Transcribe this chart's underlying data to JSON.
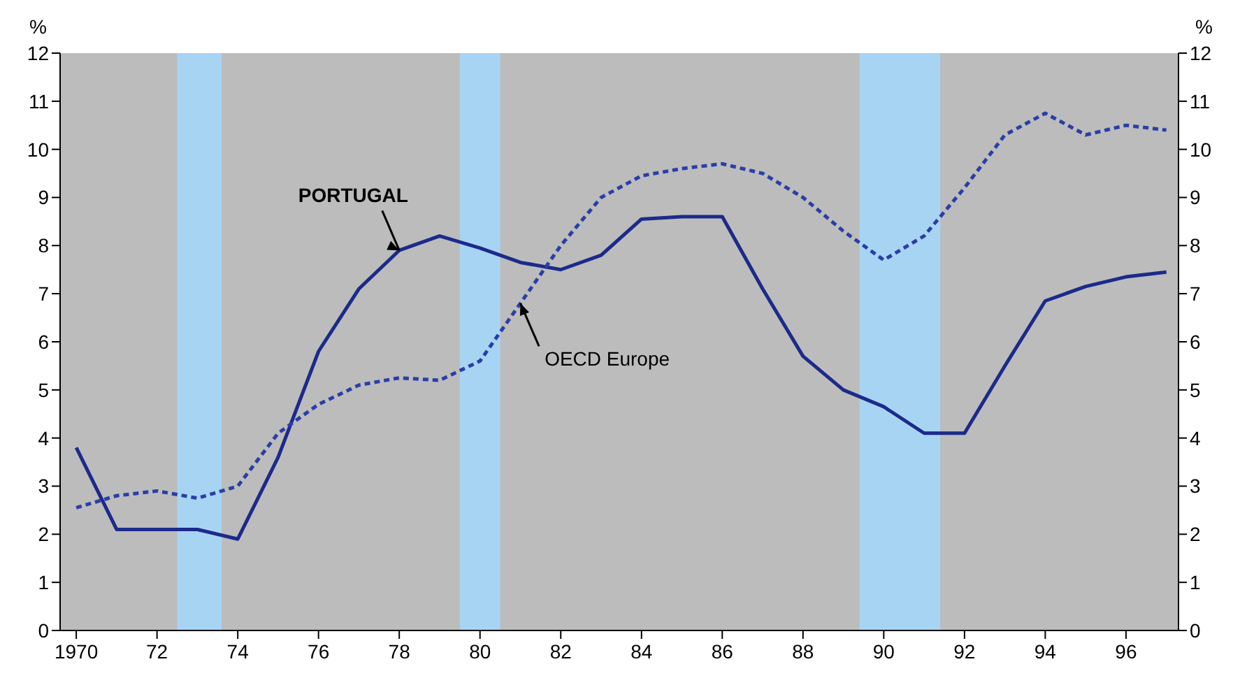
{
  "chart_data": {
    "type": "line",
    "ylabel": "%",
    "y2label": "%",
    "x": [
      1970,
      1971,
      1972,
      1973,
      1974,
      1975,
      1976,
      1977,
      1978,
      1979,
      1980,
      1981,
      1982,
      1983,
      1984,
      1985,
      1986,
      1987,
      1988,
      1989,
      1990,
      1991,
      1992,
      1993,
      1994,
      1995,
      1996,
      1997
    ],
    "series": [
      {
        "name": "PORTUGAL",
        "color": "#1c2a8a",
        "line_style": "solid",
        "values": [
          3.8,
          2.1,
          2.1,
          2.1,
          1.9,
          3.6,
          5.8,
          7.1,
          7.9,
          8.2,
          7.95,
          7.65,
          7.5,
          7.8,
          8.55,
          8.6,
          8.6,
          7.1,
          5.7,
          5.0,
          4.65,
          4.1,
          4.1,
          5.5,
          6.85,
          7.15,
          7.35,
          7.45
        ]
      },
      {
        "name": "OECD Europe",
        "color": "#2a3ea8",
        "line_style": "dashed",
        "values": [
          2.55,
          2.8,
          2.9,
          2.75,
          3.0,
          4.1,
          4.7,
          5.1,
          5.25,
          5.2,
          5.6,
          6.8,
          8.0,
          9.0,
          9.45,
          9.6,
          9.7,
          9.5,
          9.0,
          8.3,
          7.7,
          8.2,
          9.2,
          10.3,
          10.75,
          10.3,
          10.5,
          10.4
        ]
      }
    ],
    "xlim": [
      1969.6,
      1997.3
    ],
    "xticks": [
      1970,
      {
        "value": 1972,
        "label": "72"
      },
      {
        "value": 1974,
        "label": "74"
      },
      {
        "value": 1976,
        "label": "76"
      },
      {
        "value": 1978,
        "label": "78"
      },
      {
        "value": 1980,
        "label": "80"
      },
      {
        "value": 1982,
        "label": "82"
      },
      {
        "value": 1984,
        "label": "84"
      },
      {
        "value": 1986,
        "label": "86"
      },
      {
        "value": 1988,
        "label": "88"
      },
      {
        "value": 1990,
        "label": "90"
      },
      {
        "value": 1992,
        "label": "92"
      },
      {
        "value": 1994,
        "label": "94"
      },
      {
        "value": 1996,
        "label": "96"
      }
    ],
    "ylim": [
      0,
      12
    ],
    "yticks": [
      0,
      1,
      2,
      3,
      4,
      5,
      6,
      7,
      8,
      9,
      10,
      11,
      12
    ],
    "y2lim": [
      0,
      12
    ],
    "y2ticks": [
      0,
      1,
      2,
      3,
      4,
      5,
      6,
      7,
      8,
      9,
      10,
      11,
      12
    ],
    "bands": [
      {
        "axis": "x",
        "from": 1972.5,
        "to": 1973.6,
        "color": "#a8d4f4"
      },
      {
        "axis": "x",
        "from": 1979.5,
        "to": 1980.5,
        "color": "#a8d4f4"
      },
      {
        "axis": "x",
        "from": 1989.4,
        "to": 1991.4,
        "color": "#a8d4f4"
      }
    ],
    "grid": false,
    "marker": "none"
  }
}
